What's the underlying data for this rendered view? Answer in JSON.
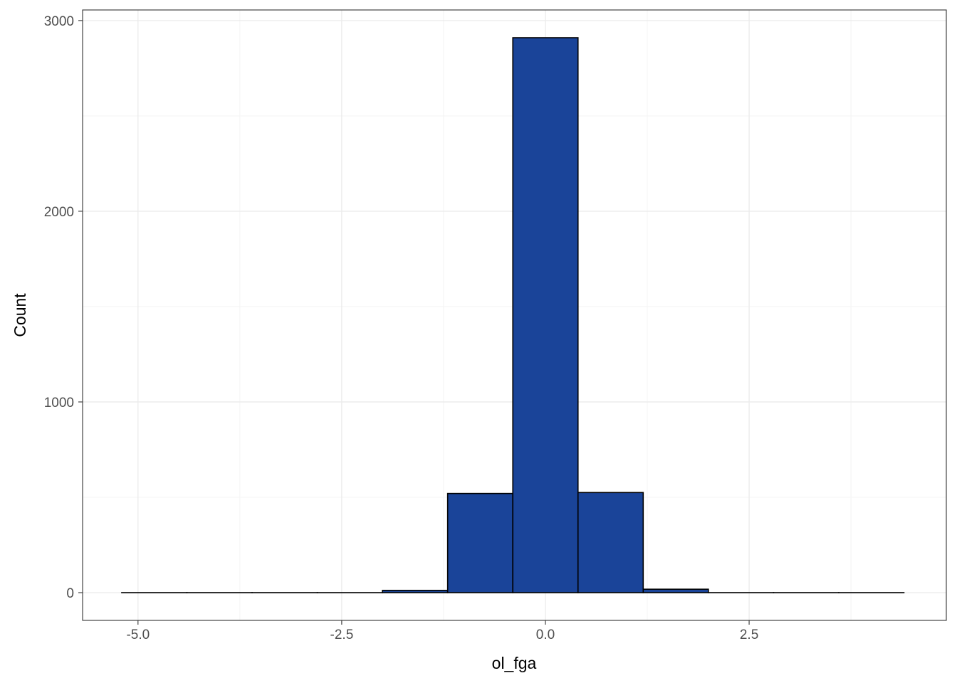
{
  "chart_data": {
    "type": "bar",
    "title": "",
    "xlabel": "ol_fga",
    "ylabel": "Count",
    "bin_width": 0.8,
    "bins": [
      {
        "x_start": -5.2,
        "x_end": -4.4,
        "count": 0
      },
      {
        "x_start": -4.4,
        "x_end": -3.6,
        "count": 0
      },
      {
        "x_start": -3.6,
        "x_end": -2.8,
        "count": 0
      },
      {
        "x_start": -2.8,
        "x_end": -2.0,
        "count": 0
      },
      {
        "x_start": -2.0,
        "x_end": -1.2,
        "count": 12
      },
      {
        "x_start": -1.2,
        "x_end": -0.4,
        "count": 520
      },
      {
        "x_start": -0.4,
        "x_end": 0.4,
        "count": 2910
      },
      {
        "x_start": 0.4,
        "x_end": 1.2,
        "count": 525
      },
      {
        "x_start": 1.2,
        "x_end": 2.0,
        "count": 18
      },
      {
        "x_start": 2.0,
        "x_end": 2.8,
        "count": 0
      },
      {
        "x_start": 2.8,
        "x_end": 3.6,
        "count": 0
      },
      {
        "x_start": 3.6,
        "x_end": 4.4,
        "count": 0
      }
    ],
    "x_ticks": [
      "-5.0",
      "-2.5",
      "0.0",
      "2.5"
    ],
    "x_tick_values": [
      -5.0,
      -2.5,
      0.0,
      2.5
    ],
    "y_ticks": [
      "0",
      "1000",
      "2000",
      "3000"
    ],
    "y_tick_values": [
      0,
      1000,
      2000,
      3000
    ],
    "xlim": [
      -5.68,
      4.92
    ],
    "ylim": [
      -145.5,
      3055.5
    ],
    "grid": true,
    "colors": {
      "bar_fill": "#1a4499",
      "bar_outline": "#000000",
      "grid_major": "#ebebeb",
      "grid_minor": "#f5f5f5",
      "panel_border": "#333333"
    }
  }
}
